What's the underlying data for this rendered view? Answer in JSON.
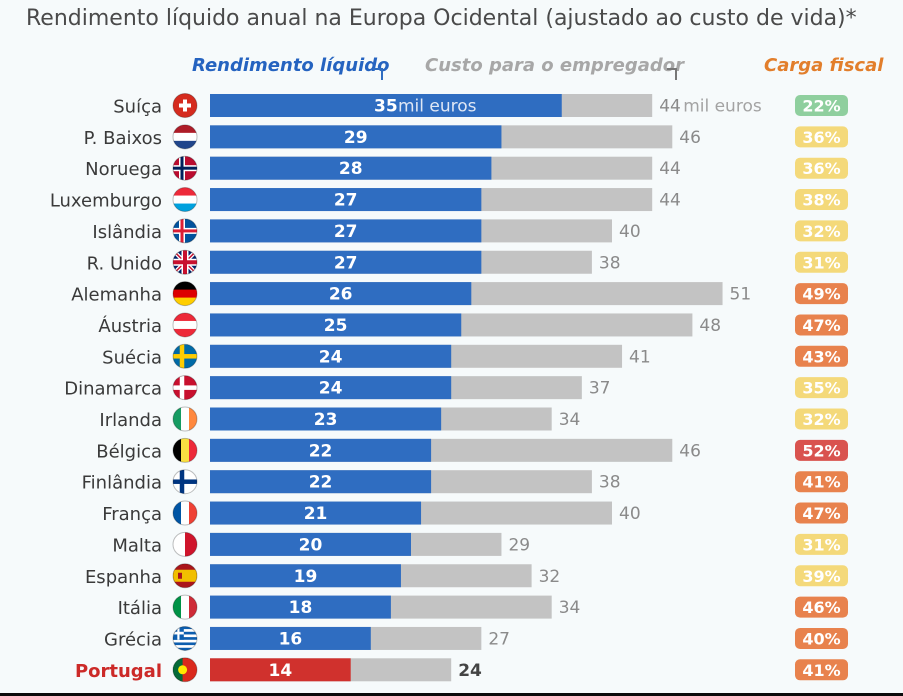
{
  "title": "Rendimento líquido anual na Europa Ocidental (ajustado ao custo de vida)*",
  "legend": {
    "net": "Rendimento líquido",
    "employer": "Custo para o empregador",
    "tax": "Carga fiscal"
  },
  "colors": {
    "net": "#2f6dc1",
    "net_highlight": "#d0312d",
    "employer": "#c3c3c3",
    "highlight_text": "#cc2a28",
    "tax_green": "#8fcf9e",
    "tax_yellow": "#f4d97a",
    "tax_orange": "#e8824d",
    "tax_red": "#d9534f"
  },
  "chart_data": {
    "type": "bar",
    "orientation": "horizontal",
    "stacked_overlay": true,
    "unit": "mil euros",
    "categories": [
      "Suíça",
      "P. Baixos",
      "Noruega",
      "Luxemburgo",
      "Islândia",
      "R. Unido",
      "Alemanha",
      "Áustria",
      "Suécia",
      "Dinamarca",
      "Irlanda",
      "Bélgica",
      "Finlândia",
      "França",
      "Malta",
      "Espanha",
      "Itália",
      "Grécia",
      "Portugal"
    ],
    "highlight": "Portugal",
    "series": [
      {
        "name": "Rendimento líquido",
        "values": [
          35,
          29,
          28,
          27,
          27,
          27,
          26,
          25,
          24,
          24,
          23,
          22,
          22,
          21,
          20,
          19,
          18,
          16,
          14
        ]
      },
      {
        "name": "Custo para o empregador",
        "values": [
          44,
          46,
          44,
          44,
          40,
          38,
          51,
          48,
          41,
          37,
          34,
          46,
          38,
          40,
          29,
          32,
          34,
          27,
          24
        ]
      },
      {
        "name": "Carga fiscal",
        "values": [
          "22%",
          "36%",
          "36%",
          "38%",
          "32%",
          "31%",
          "49%",
          "47%",
          "43%",
          "35%",
          "32%",
          "52%",
          "41%",
          "47%",
          "31%",
          "39%",
          "46%",
          "40%",
          "41%"
        ]
      }
    ],
    "tax_levels": [
      "green",
      "yellow",
      "yellow",
      "yellow",
      "yellow",
      "yellow",
      "orange",
      "orange",
      "orange",
      "yellow",
      "yellow",
      "red",
      "orange",
      "orange",
      "yellow",
      "yellow",
      "orange",
      "orange",
      "orange"
    ],
    "flags": [
      "switzerland-flag-icon",
      "netherlands-flag-icon",
      "norway-flag-icon",
      "luxembourg-flag-icon",
      "iceland-flag-icon",
      "uk-flag-icon",
      "germany-flag-icon",
      "austria-flag-icon",
      "sweden-flag-icon",
      "denmark-flag-icon",
      "ireland-flag-icon",
      "belgium-flag-icon",
      "finland-flag-icon",
      "france-flag-icon",
      "malta-flag-icon",
      "spain-flag-icon",
      "italy-flag-icon",
      "greece-flag-icon",
      "portugal-flag-icon"
    ],
    "xlim": [
      0,
      58
    ]
  }
}
